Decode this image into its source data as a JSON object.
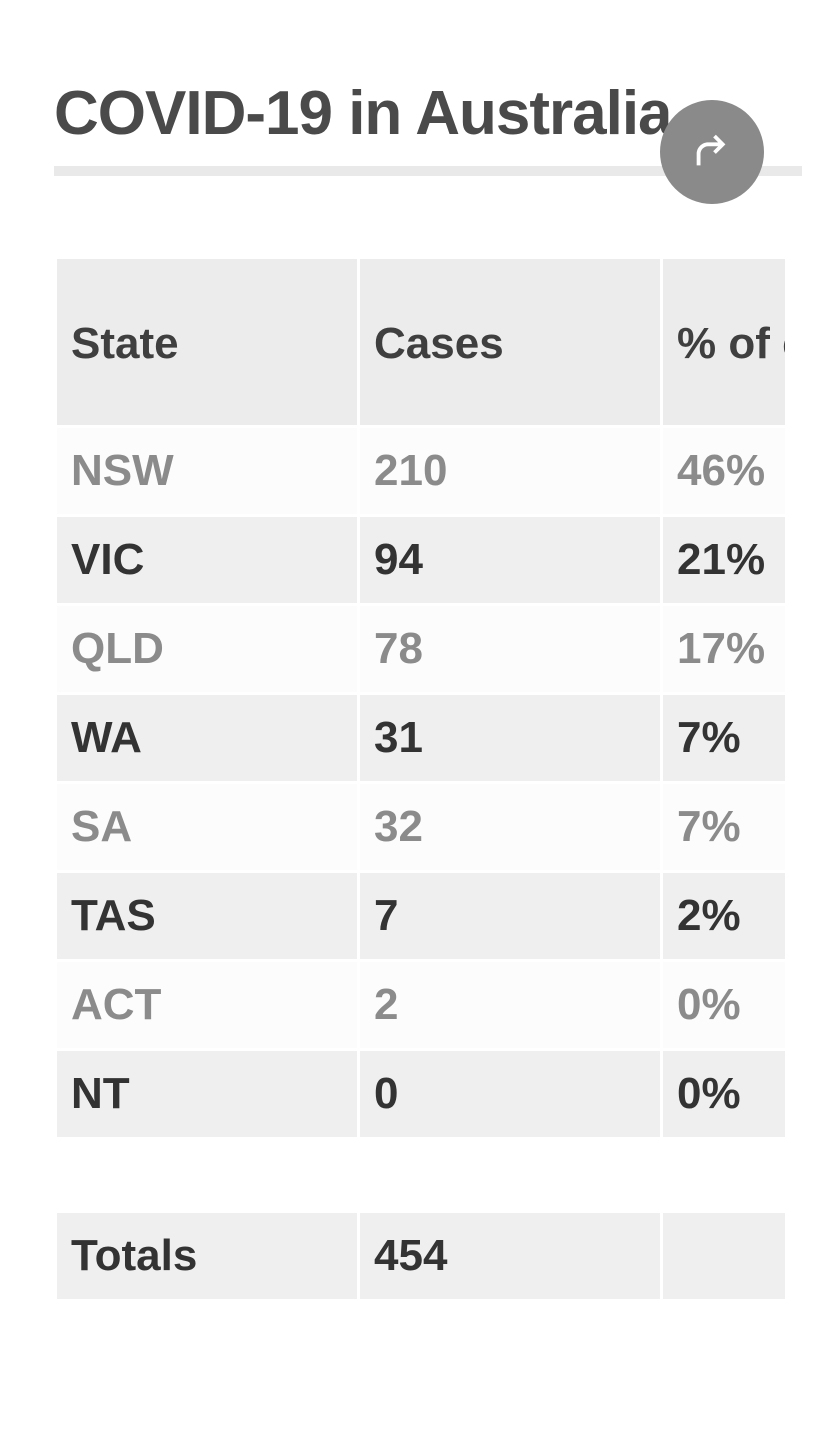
{
  "title": "COVID-19 in Australia",
  "share_icon": "share-icon",
  "columns": {
    "c1": "State",
    "c2": "Cases",
    "c3": "% of cases"
  },
  "rows": [
    {
      "state": "NSW",
      "cases": "210",
      "pct": "46%",
      "shade": "light"
    },
    {
      "state": "VIC",
      "cases": "94",
      "pct": "21%",
      "shade": "dark"
    },
    {
      "state": "QLD",
      "cases": "78",
      "pct": "17%",
      "shade": "light"
    },
    {
      "state": "WA",
      "cases": "31",
      "pct": "7%",
      "shade": "dark"
    },
    {
      "state": "SA",
      "cases": "32",
      "pct": "7%",
      "shade": "light"
    },
    {
      "state": "TAS",
      "cases": "7",
      "pct": "2%",
      "shade": "dark"
    },
    {
      "state": "ACT",
      "cases": "2",
      "pct": "0%",
      "shade": "light"
    },
    {
      "state": "NT",
      "cases": "0",
      "pct": "0%",
      "shade": "dark"
    }
  ],
  "totals": {
    "label": "Totals",
    "cases": "454",
    "pct": ""
  },
  "style": {
    "title_color": "#4a4a4a",
    "rule_color": "#e9e9e9",
    "share_bg": "#8a8a8a",
    "share_fg": "#ffffff",
    "header_bg": "#ececec",
    "header_fg": "#3f3f3f",
    "row_light_bg": "#fcfcfc",
    "row_light_fg": "#8b8b8b",
    "row_dark_bg": "#efefef",
    "row_dark_fg": "#333333",
    "font_size_title": 62,
    "font_size_cell": 44
  }
}
